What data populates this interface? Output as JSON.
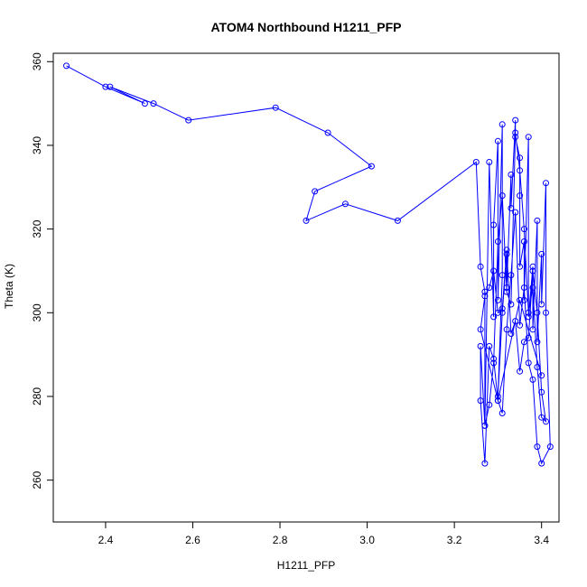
{
  "chart_data": {
    "type": "line",
    "title": "ATOM4 Northbound H1211_PFP",
    "xlabel": "H1211_PFP",
    "ylabel": "Theta (K)",
    "xlim": [
      2.28,
      3.44
    ],
    "ylim": [
      250,
      362
    ],
    "xticks": [
      "2.4",
      "2.6",
      "2.8",
      "3.0",
      "3.2",
      "3.4"
    ],
    "yticks": [
      "260",
      "280",
      "300",
      "320",
      "340",
      "360"
    ],
    "grid": false,
    "series_color": "#0000ff",
    "marker": "open-circle",
    "x": [
      2.31,
      2.4,
      2.49,
      2.41,
      2.51,
      2.59,
      2.79,
      2.91,
      3.01,
      2.88,
      2.86,
      2.95,
      3.07,
      3.25,
      3.26,
      3.27,
      3.27,
      3.28,
      3.29,
      3.29,
      3.3,
      3.3,
      3.31,
      3.31,
      3.3,
      3.31,
      3.32,
      3.32,
      3.33,
      3.33,
      3.34,
      3.34,
      3.35,
      3.35,
      3.35,
      3.36,
      3.36,
      3.37,
      3.37,
      3.38,
      3.38,
      3.39,
      3.39,
      3.4,
      3.4,
      3.41,
      3.41,
      3.42,
      3.4,
      3.39,
      3.38,
      3.37,
      3.36,
      3.35,
      3.34,
      3.33,
      3.32,
      3.31,
      3.3,
      3.29,
      3.28,
      3.27,
      3.26,
      3.26,
      3.27,
      3.28,
      3.29,
      3.3,
      3.31,
      3.32,
      3.33,
      3.34,
      3.35,
      3.36,
      3.37,
      3.38,
      3.39,
      3.4,
      3.41,
      3.4,
      3.39,
      3.38,
      3.37,
      3.36,
      3.35,
      3.34,
      3.33,
      3.32,
      3.31,
      3.3,
      3.29,
      3.28,
      3.27,
      3.26,
      3.3,
      3.35,
      3.4
    ],
    "y": [
      359,
      354,
      350,
      354,
      350,
      346,
      349,
      343,
      335,
      329,
      322,
      326,
      322,
      336,
      311,
      305,
      273,
      336,
      299,
      321,
      341,
      303,
      345,
      309,
      280,
      300,
      314,
      306,
      333,
      325,
      346,
      342,
      337,
      328,
      311,
      317,
      303,
      342,
      299,
      311,
      296,
      322,
      293,
      314,
      302,
      331,
      300,
      268,
      264,
      268,
      284,
      288,
      306,
      297,
      324,
      309,
      296,
      276,
      279,
      289,
      292,
      264,
      279,
      292,
      273,
      278,
      288,
      317,
      328,
      305,
      302,
      343,
      334,
      320,
      300,
      306,
      287,
      275,
      274,
      281,
      300,
      310,
      294,
      293,
      286,
      298,
      295,
      315,
      301,
      300,
      310,
      306,
      304,
      296,
      279,
      303,
      285
    ]
  }
}
